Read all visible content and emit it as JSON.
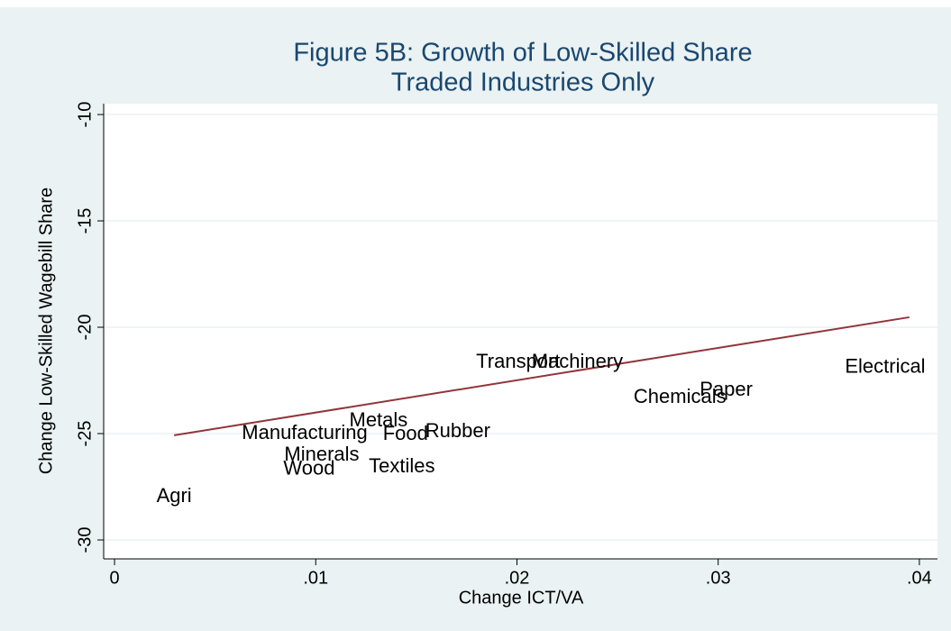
{
  "chart_data": {
    "type": "scatter",
    "title": [
      "Figure 5B: Growth of Low-Skilled Share",
      "Traded Industries Only"
    ],
    "x_label": "Change ICT/VA",
    "y_label": "Change Low-Skilled Wagebill Share",
    "labels": [
      "Agri",
      "Wood",
      "Textiles",
      "Minerals",
      "Manufacturing",
      "Food",
      "Metals",
      "Rubber",
      "Transport",
      "Machinery",
      "Chemicals",
      "Paper",
      "Electrical"
    ],
    "x": [
      0.00296,
      0.00967,
      0.01428,
      0.0103,
      0.00945,
      0.01446,
      0.01312,
      0.01706,
      0.02006,
      0.023,
      0.0281,
      0.0304,
      0.0383
    ],
    "y": [
      -27.97,
      -26.69,
      -26.57,
      -26.02,
      -25.0,
      -25.04,
      -24.41,
      -24.92,
      -21.65,
      -21.65,
      -23.31,
      -22.97,
      -21.9
    ],
    "color": "#000000",
    "fit_line": {
      "x": [
        0.00296,
        0.0395
      ],
      "y": [
        -25.08,
        -19.53
      ],
      "color": "#90353b"
    },
    "xlim": [
      -0.00054,
      0.0409
    ],
    "ylim": [
      -30.89,
      -9.49
    ],
    "xticks": [
      0,
      {
        "value": 0.01,
        "label": ".01"
      },
      {
        "value": 0.02,
        "label": ".02"
      },
      {
        "value": 0.03,
        "label": ".03"
      },
      {
        "value": 0.04,
        "label": ".04"
      }
    ],
    "yticks": [
      -30,
      -25,
      -20,
      -15,
      -10
    ],
    "grid": true
  }
}
